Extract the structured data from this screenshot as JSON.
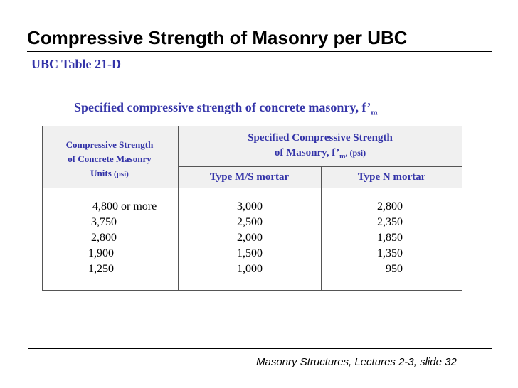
{
  "title": "Compressive Strength of Masonry per UBC",
  "subtitle": "UBC Table 21-D",
  "caption": {
    "text": "Specified compressive strength of concrete masonry, f’",
    "subscript": "m"
  },
  "table": {
    "col1_header": [
      "Compressive Strength",
      "of Concrete Masonry"
    ],
    "col1_header_units_label": "Units ",
    "col1_header_units": "(psi)",
    "group_header_line1": "Specified Compressive Strength",
    "group_header_line2": "of Masonry, f’",
    "group_header_sub": "m",
    "group_header_units": ", (psi)",
    "col2_header": "Type M/S mortar",
    "col3_header": "Type N mortar",
    "col1_values": [
      "4,800 or more",
      "3,750",
      "2,800",
      "1,900",
      "1,250"
    ],
    "col2_values": [
      "3,000",
      "2,500",
      "2,000",
      "1,500",
      "1,000"
    ],
    "col3_values": [
      "2,800",
      "2,350",
      "1,850",
      "1,350",
      "950"
    ]
  },
  "footer": "Masonry Structures, Lectures 2-3, slide 32"
}
